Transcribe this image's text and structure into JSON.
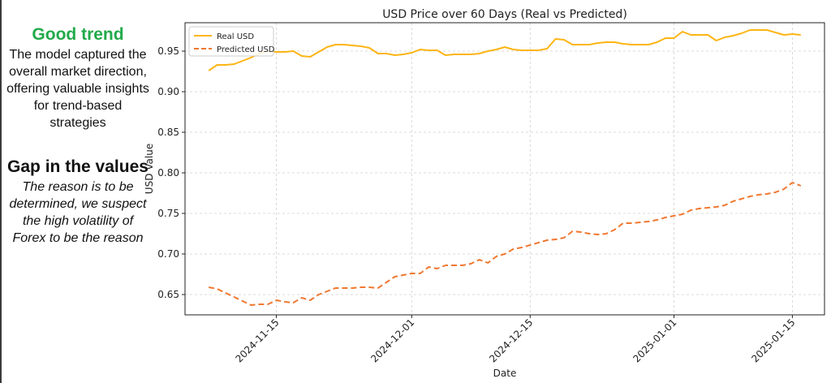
{
  "sidebar": {
    "good_trend_title": "Good trend",
    "good_trend_text": "The model captured the overall market direction, offering valuable insights for trend-based strategies",
    "gap_title": "Gap in the values",
    "gap_text": "The reason is to be determined, we suspect  the high volatility of Forex to be the reason"
  },
  "chart_data": {
    "type": "line",
    "title": "USD Price over 60 Days (Real vs Predicted)",
    "xlabel": "Date",
    "ylabel": "USD Value",
    "x_start": "2024-11-07",
    "x_end": "2025-01-16",
    "x_ticks": [
      "2024-11-15",
      "2024-12-01",
      "2024-12-15",
      "2025-01-01",
      "2025-01-15"
    ],
    "ylim": [
      0.625,
      0.985
    ],
    "y_ticks": [
      0.65,
      0.7,
      0.75,
      0.8,
      0.85,
      0.9,
      0.95
    ],
    "grid": true,
    "legend_position": "top-left",
    "series": [
      {
        "name": "Real USD",
        "color": "#fdb515",
        "style": "solid",
        "x": [
          "2024-11-07",
          "2024-11-08",
          "2024-11-09",
          "2024-11-10",
          "2024-11-11",
          "2024-11-12",
          "2024-11-13",
          "2024-11-14",
          "2024-11-15",
          "2024-11-16",
          "2024-11-17",
          "2024-11-18",
          "2024-11-19",
          "2024-11-20",
          "2024-11-21",
          "2024-11-22",
          "2024-11-23",
          "2024-11-24",
          "2024-11-25",
          "2024-11-26",
          "2024-11-27",
          "2024-11-28",
          "2024-11-29",
          "2024-11-30",
          "2024-12-01",
          "2024-12-02",
          "2024-12-03",
          "2024-12-04",
          "2024-12-05",
          "2024-12-06",
          "2024-12-07",
          "2024-12-08",
          "2024-12-09",
          "2024-12-10",
          "2024-12-11",
          "2024-12-12",
          "2024-12-13",
          "2024-12-14",
          "2024-12-15",
          "2024-12-16",
          "2024-12-17",
          "2024-12-18",
          "2024-12-19",
          "2024-12-20",
          "2024-12-21",
          "2024-12-22",
          "2024-12-23",
          "2024-12-24",
          "2024-12-25",
          "2024-12-26",
          "2024-12-27",
          "2024-12-28",
          "2024-12-29",
          "2024-12-30",
          "2024-12-31",
          "2025-01-01",
          "2025-01-02",
          "2025-01-03",
          "2025-01-04",
          "2025-01-05",
          "2025-01-06",
          "2025-01-07",
          "2025-01-08",
          "2025-01-09",
          "2025-01-10",
          "2025-01-11",
          "2025-01-12",
          "2025-01-13",
          "2025-01-14",
          "2025-01-15",
          "2025-01-16"
        ],
        "values": [
          0.926,
          0.933,
          0.933,
          0.934,
          0.938,
          0.942,
          0.947,
          0.95,
          0.949,
          0.949,
          0.95,
          0.944,
          0.943,
          0.949,
          0.955,
          0.958,
          0.958,
          0.957,
          0.956,
          0.954,
          0.947,
          0.947,
          0.945,
          0.946,
          0.948,
          0.952,
          0.951,
          0.951,
          0.945,
          0.946,
          0.946,
          0.946,
          0.947,
          0.95,
          0.952,
          0.955,
          0.952,
          0.951,
          0.951,
          0.951,
          0.953,
          0.965,
          0.964,
          0.958,
          0.958,
          0.958,
          0.96,
          0.961,
          0.961,
          0.959,
          0.958,
          0.958,
          0.958,
          0.961,
          0.966,
          0.966,
          0.974,
          0.97,
          0.97,
          0.97,
          0.963,
          0.967,
          0.969,
          0.972,
          0.976,
          0.976,
          0.976,
          0.973,
          0.97,
          0.971,
          0.97
        ]
      },
      {
        "name": "Predicted USD",
        "color": "#f07830",
        "style": "dashed",
        "x": [
          "2024-11-07",
          "2024-11-08",
          "2024-11-09",
          "2024-11-10",
          "2024-11-11",
          "2024-11-12",
          "2024-11-13",
          "2024-11-14",
          "2024-11-15",
          "2024-11-16",
          "2024-11-17",
          "2024-11-18",
          "2024-11-19",
          "2024-11-20",
          "2024-11-21",
          "2024-11-22",
          "2024-11-23",
          "2024-11-24",
          "2024-11-25",
          "2024-11-26",
          "2024-11-27",
          "2024-11-28",
          "2024-11-29",
          "2024-11-30",
          "2024-12-01",
          "2024-12-02",
          "2024-12-03",
          "2024-12-04",
          "2024-12-05",
          "2024-12-06",
          "2024-12-07",
          "2024-12-08",
          "2024-12-09",
          "2024-12-10",
          "2024-12-11",
          "2024-12-12",
          "2024-12-13",
          "2024-12-14",
          "2024-12-15",
          "2024-12-16",
          "2024-12-17",
          "2024-12-18",
          "2024-12-19",
          "2024-12-20",
          "2024-12-21",
          "2024-12-22",
          "2024-12-23",
          "2024-12-24",
          "2024-12-25",
          "2024-12-26",
          "2024-12-27",
          "2024-12-28",
          "2024-12-29",
          "2024-12-30",
          "2024-12-31",
          "2025-01-01",
          "2025-01-02",
          "2025-01-03",
          "2025-01-04",
          "2025-01-05",
          "2025-01-06",
          "2025-01-07",
          "2025-01-08",
          "2025-01-09",
          "2025-01-10",
          "2025-01-11",
          "2025-01-12",
          "2025-01-13",
          "2025-01-14",
          "2025-01-15",
          "2025-01-16"
        ],
        "values": [
          0.659,
          0.657,
          0.652,
          0.647,
          0.642,
          0.637,
          0.638,
          0.638,
          0.643,
          0.641,
          0.64,
          0.646,
          0.643,
          0.65,
          0.654,
          0.658,
          0.658,
          0.658,
          0.659,
          0.659,
          0.658,
          0.665,
          0.672,
          0.674,
          0.676,
          0.676,
          0.684,
          0.682,
          0.686,
          0.686,
          0.686,
          0.688,
          0.693,
          0.689,
          0.697,
          0.7,
          0.706,
          0.708,
          0.711,
          0.714,
          0.717,
          0.718,
          0.72,
          0.728,
          0.727,
          0.725,
          0.724,
          0.725,
          0.73,
          0.738,
          0.738,
          0.739,
          0.74,
          0.742,
          0.745,
          0.747,
          0.749,
          0.754,
          0.756,
          0.757,
          0.758,
          0.76,
          0.765,
          0.768,
          0.771,
          0.773,
          0.774,
          0.776,
          0.78,
          0.788,
          0.784
        ]
      }
    ]
  }
}
